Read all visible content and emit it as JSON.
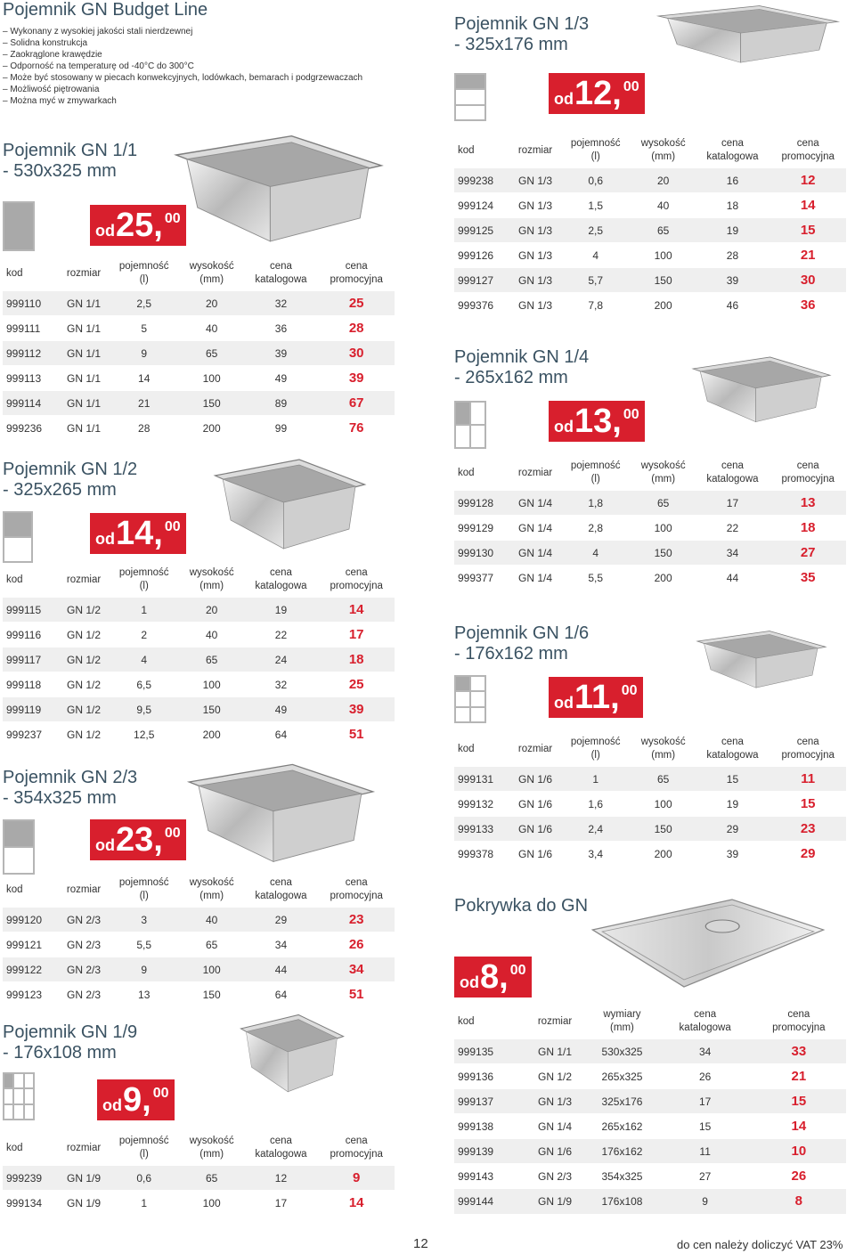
{
  "header": {
    "title": "Pojemnik GN Budget Line",
    "bullets": [
      "Wykonany z wysokiej jakości stali nierdzewnej",
      "Solidna konstrukcja",
      "Zaokrąglone krawędzie",
      "Odporność na temperaturę od -40°C do 300°C",
      "Może być stosowany w piecach konwekcyjnych, lodówkach, bemarach i podgrzewaczach",
      "Możliwość piętrowania",
      "Można myć w zmywarkach"
    ]
  },
  "headers_std": [
    "kod",
    "rozmiar",
    "pojemność\n(l)",
    "wysokość\n(mm)",
    "cena\nkatalogowa",
    "cena\npromocyjna"
  ],
  "headers_lid": [
    "kod",
    "rozmiar",
    "",
    "wymiary\n(mm)",
    "cena\nkatalogowa",
    "cena\npromocyjna"
  ],
  "sections": {
    "gn11": {
      "title1": "Pojemnik GN 1/1",
      "title2": "- 530x325 mm",
      "od": "od",
      "price": "25,",
      "cents": "00",
      "rows": [
        [
          "999110",
          "GN 1/1",
          "2,5",
          "20",
          "32",
          "25"
        ],
        [
          "999111",
          "GN 1/1",
          "5",
          "40",
          "36",
          "28"
        ],
        [
          "999112",
          "GN 1/1",
          "9",
          "65",
          "39",
          "30"
        ],
        [
          "999113",
          "GN 1/1",
          "14",
          "100",
          "49",
          "39"
        ],
        [
          "999114",
          "GN 1/1",
          "21",
          "150",
          "89",
          "67"
        ],
        [
          "999236",
          "GN 1/1",
          "28",
          "200",
          "99",
          "76"
        ]
      ]
    },
    "gn12": {
      "title1": "Pojemnik GN 1/2",
      "title2": "- 325x265 mm",
      "od": "od",
      "price": "14,",
      "cents": "00",
      "rows": [
        [
          "999115",
          "GN 1/2",
          "1",
          "20",
          "19",
          "14"
        ],
        [
          "999116",
          "GN 1/2",
          "2",
          "40",
          "22",
          "17"
        ],
        [
          "999117",
          "GN 1/2",
          "4",
          "65",
          "24",
          "18"
        ],
        [
          "999118",
          "GN 1/2",
          "6,5",
          "100",
          "32",
          "25"
        ],
        [
          "999119",
          "GN 1/2",
          "9,5",
          "150",
          "49",
          "39"
        ],
        [
          "999237",
          "GN 1/2",
          "12,5",
          "200",
          "64",
          "51"
        ]
      ]
    },
    "gn23": {
      "title1": "Pojemnik GN 2/3",
      "title2": "- 354x325 mm",
      "od": "od",
      "price": "23,",
      "cents": "00",
      "rows": [
        [
          "999120",
          "GN 2/3",
          "3",
          "40",
          "29",
          "23"
        ],
        [
          "999121",
          "GN 2/3",
          "5,5",
          "65",
          "34",
          "26"
        ],
        [
          "999122",
          "GN 2/3",
          "9",
          "100",
          "44",
          "34"
        ],
        [
          "999123",
          "GN 2/3",
          "13",
          "150",
          "64",
          "51"
        ]
      ]
    },
    "gn19": {
      "title1": "Pojemnik GN 1/9",
      "title2": "- 176x108 mm",
      "od": "od",
      "price": "9,",
      "cents": "00",
      "rows": [
        [
          "999239",
          "GN 1/9",
          "0,6",
          "65",
          "12",
          "9"
        ],
        [
          "999134",
          "GN 1/9",
          "1",
          "100",
          "17",
          "14"
        ]
      ]
    },
    "gn13": {
      "title1": "Pojemnik GN 1/3",
      "title2": "- 325x176 mm",
      "od": "od",
      "price": "12,",
      "cents": "00",
      "rows": [
        [
          "999238",
          "GN 1/3",
          "0,6",
          "20",
          "16",
          "12"
        ],
        [
          "999124",
          "GN 1/3",
          "1,5",
          "40",
          "18",
          "14"
        ],
        [
          "999125",
          "GN 1/3",
          "2,5",
          "65",
          "19",
          "15"
        ],
        [
          "999126",
          "GN 1/3",
          "4",
          "100",
          "28",
          "21"
        ],
        [
          "999127",
          "GN 1/3",
          "5,7",
          "150",
          "39",
          "30"
        ],
        [
          "999376",
          "GN 1/3",
          "7,8",
          "200",
          "46",
          "36"
        ]
      ]
    },
    "gn14": {
      "title1": "Pojemnik GN 1/4",
      "title2": "- 265x162 mm",
      "od": "od",
      "price": "13,",
      "cents": "00",
      "rows": [
        [
          "999128",
          "GN 1/4",
          "1,8",
          "65",
          "17",
          "13"
        ],
        [
          "999129",
          "GN 1/4",
          "2,8",
          "100",
          "22",
          "18"
        ],
        [
          "999130",
          "GN 1/4",
          "4",
          "150",
          "34",
          "27"
        ],
        [
          "999377",
          "GN 1/4",
          "5,5",
          "200",
          "44",
          "35"
        ]
      ]
    },
    "gn16": {
      "title1": "Pojemnik GN 1/6",
      "title2": "- 176x162 mm",
      "od": "od",
      "price": "11,",
      "cents": "00",
      "rows": [
        [
          "999131",
          "GN 1/6",
          "1",
          "65",
          "15",
          "11"
        ],
        [
          "999132",
          "GN 1/6",
          "1,6",
          "100",
          "19",
          "15"
        ],
        [
          "999133",
          "GN 1/6",
          "2,4",
          "150",
          "29",
          "23"
        ],
        [
          "999378",
          "GN 1/6",
          "3,4",
          "200",
          "39",
          "29"
        ]
      ]
    },
    "lid": {
      "title1": "Pokrywka do GN",
      "title2": "",
      "od": "od",
      "price": "8,",
      "cents": "00",
      "rows": [
        [
          "999135",
          "GN 1/1",
          "",
          "530x325",
          "34",
          "33"
        ],
        [
          "999136",
          "GN 1/2",
          "",
          "265x325",
          "26",
          "21"
        ],
        [
          "999137",
          "GN 1/3",
          "",
          "325x176",
          "17",
          "15"
        ],
        [
          "999138",
          "GN 1/4",
          "",
          "265x162",
          "15",
          "14"
        ],
        [
          "999139",
          "GN 1/6",
          "",
          "176x162",
          "11",
          "10"
        ],
        [
          "999143",
          "GN 2/3",
          "",
          "354x325",
          "27",
          "26"
        ],
        [
          "999144",
          "GN 1/9",
          "",
          "176x108",
          "9",
          "8"
        ]
      ]
    }
  },
  "footer": {
    "page": "12",
    "vat": "do cen należy doliczyć VAT 23%"
  },
  "colors": {
    "accent": "#d81f2d",
    "title": "#3a5262",
    "rowShade": "#efefef",
    "diagramFill": "#a9a9a9"
  }
}
